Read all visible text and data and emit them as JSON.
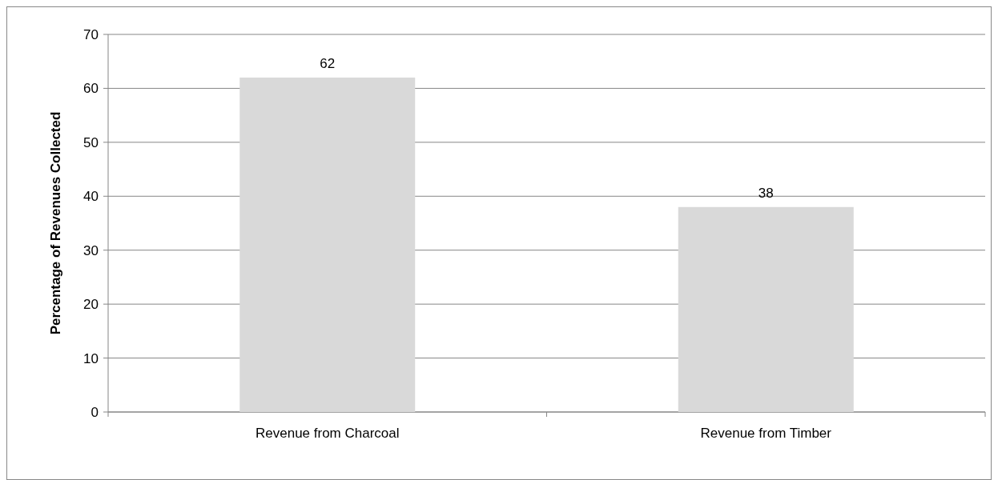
{
  "chart_data": {
    "type": "bar",
    "ylabel": "Percentage of Revenues Collected",
    "categories": [
      "Revenue from Charcoal",
      "Revenue from Timber"
    ],
    "values": [
      62,
      38
    ],
    "color": "#d9d9d9",
    "ylim": [
      0,
      70
    ],
    "yticks": [
      0,
      10,
      20,
      30,
      40,
      50,
      60,
      70
    ],
    "grid": "y",
    "data_labels": true
  }
}
